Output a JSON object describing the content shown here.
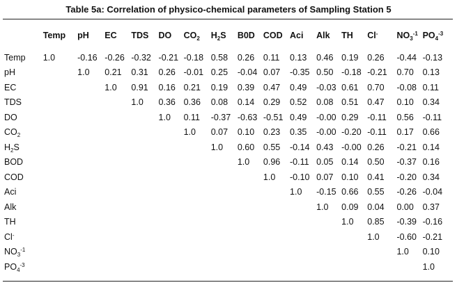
{
  "title": "Table 5a: Correlation of physico-chemical parameters of Sampling Station 5",
  "columns": [
    {
      "base": "Temp",
      "sub": "",
      "sup": ""
    },
    {
      "base": "pH",
      "sub": "",
      "sup": ""
    },
    {
      "base": "EC",
      "sub": "",
      "sup": ""
    },
    {
      "base": "TDS",
      "sub": "",
      "sup": ""
    },
    {
      "base": "DO",
      "sub": "",
      "sup": ""
    },
    {
      "base": "CO",
      "sub": "2",
      "sup": ""
    },
    {
      "base": "H",
      "sub": "2",
      "sup": "",
      "tail": "S"
    },
    {
      "base": "B0D",
      "sub": "",
      "sup": ""
    },
    {
      "base": "COD",
      "sub": "",
      "sup": ""
    },
    {
      "base": "Aci",
      "sub": "",
      "sup": ""
    },
    {
      "base": "Alk",
      "sub": "",
      "sup": ""
    },
    {
      "base": "TH",
      "sub": "",
      "sup": ""
    },
    {
      "base": "Cl",
      "sub": "",
      "sup": "-"
    },
    {
      "base": "NO",
      "sub": "3",
      "sup": "-1"
    },
    {
      "base": "PO",
      "sub": "4",
      "sup": "-3"
    }
  ],
  "rows": [
    {
      "label": {
        "base": "Temp"
      },
      "values": [
        "1.0",
        "-0.16",
        "-0.26",
        "-0.32",
        "-0.21",
        "-0.18",
        "0.58",
        "0.26",
        "0.11",
        "0.13",
        "0.46",
        "0.19",
        "0.26",
        "-0.44",
        "-0.13"
      ]
    },
    {
      "label": {
        "base": "pH"
      },
      "values": [
        "",
        "1.0",
        "0.21",
        "0.31",
        "0.26",
        "-0.01",
        "0.25",
        "-0.04",
        "0.07",
        "-0.35",
        "0.50",
        "-0.18",
        "-0.21",
        "0.70",
        "0.13"
      ]
    },
    {
      "label": {
        "base": "EC"
      },
      "values": [
        "",
        "",
        "1.0",
        "0.91",
        "0.16",
        "0.21",
        "0.19",
        "0.39",
        "0.47",
        "0.49",
        "-0.03",
        "0.61",
        "0.70",
        "-0.08",
        "0.11"
      ]
    },
    {
      "label": {
        "base": "TDS"
      },
      "values": [
        "",
        "",
        "",
        "1.0",
        "0.36",
        "0.36",
        "0.08",
        "0.14",
        "0.29",
        "0.52",
        "0.08",
        "0.51",
        "0.47",
        "0.10",
        "0.34"
      ]
    },
    {
      "label": {
        "base": "DO"
      },
      "values": [
        "",
        "",
        "",
        "",
        "1.0",
        "0.11",
        "-0.37",
        "-0.63",
        "-0.51",
        "0.49",
        "-0.00",
        "0.29",
        "-0.11",
        "0.56",
        "-0.11"
      ]
    },
    {
      "label": {
        "base": "CO",
        "sub": "2"
      },
      "values": [
        "",
        "",
        "",
        "",
        "",
        "1.0",
        "0.07",
        "0.10",
        "0.23",
        "0.35",
        "-0.00",
        "-0.20",
        "-0.11",
        "0.17",
        "0.66"
      ]
    },
    {
      "label": {
        "base": "H",
        "sub": "2",
        "tail": "S"
      },
      "values": [
        "",
        "",
        "",
        "",
        "",
        "",
        "1.0",
        "0.60",
        "0.55",
        "-0.14",
        "0.43",
        "-0.00",
        "0.26",
        "-0.21",
        "0.14"
      ]
    },
    {
      "label": {
        "base": "BOD"
      },
      "values": [
        "",
        "",
        "",
        "",
        "",
        "",
        "",
        "1.0",
        "0.96",
        "-0.11",
        "0.05",
        "0.14",
        "0.50",
        "-0.37",
        "0.16"
      ]
    },
    {
      "label": {
        "base": "COD"
      },
      "values": [
        "",
        "",
        "",
        "",
        "",
        "",
        "",
        "",
        "1.0",
        "-0.10",
        "0.07",
        "0.10",
        "0.41",
        "-0.20",
        "0.34"
      ]
    },
    {
      "label": {
        "base": "Aci"
      },
      "values": [
        "",
        "",
        "",
        "",
        "",
        "",
        "",
        "",
        "",
        "1.0",
        "-0.15",
        "0.66",
        "0.55",
        "-0.26",
        "-0.04"
      ]
    },
    {
      "label": {
        "base": "Alk"
      },
      "values": [
        "",
        "",
        "",
        "",
        "",
        "",
        "",
        "",
        "",
        "",
        "1.0",
        "0.09",
        "0.04",
        "0.00",
        "0.37"
      ]
    },
    {
      "label": {
        "base": "TH"
      },
      "values": [
        "",
        "",
        "",
        "",
        "",
        "",
        "",
        "",
        "",
        "",
        "",
        "1.0",
        "0.85",
        "-0.39",
        "-0.16"
      ]
    },
    {
      "label": {
        "base": "Cl",
        "sup": "-"
      },
      "values": [
        "",
        "",
        "",
        "",
        "",
        "",
        "",
        "",
        "",
        "",
        "",
        "",
        "1.0",
        "-0.60",
        "-0.21"
      ]
    },
    {
      "label": {
        "base": "NO",
        "sub": "3",
        "sup": "-1"
      },
      "values": [
        "",
        "",
        "",
        "",
        "",
        "",
        "",
        "",
        "",
        "",
        "",
        "",
        "",
        "1.0",
        "0.10"
      ]
    },
    {
      "label": {
        "base": "PO",
        "sub": "4",
        "sup": "-3"
      },
      "values": [
        "",
        "",
        "",
        "",
        "",
        "",
        "",
        "",
        "",
        "",
        "",
        "",
        "",
        "",
        "1.0"
      ]
    }
  ]
}
